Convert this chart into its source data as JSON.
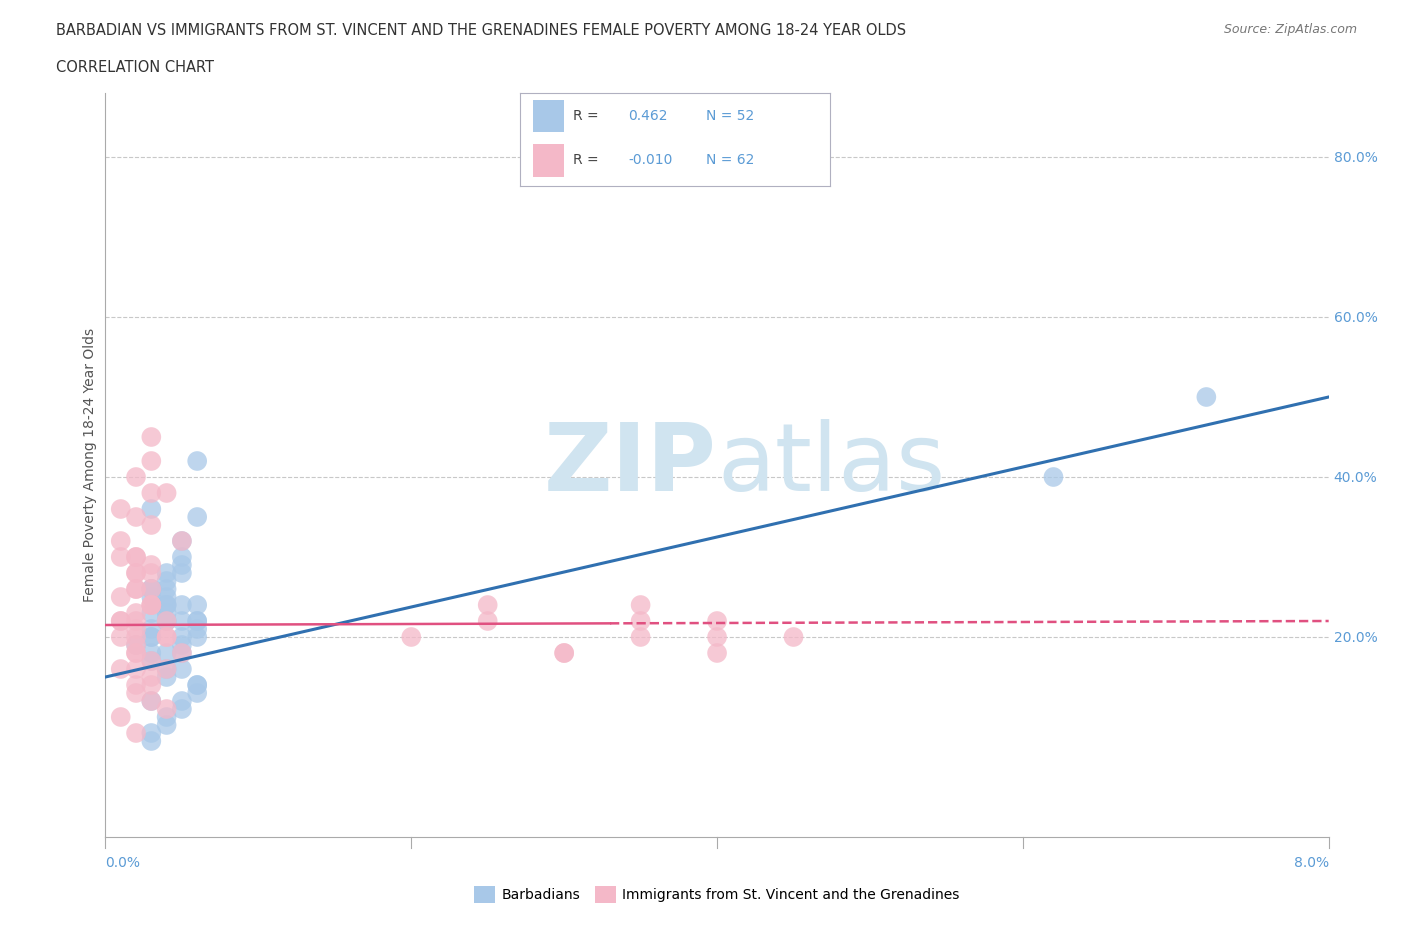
{
  "title_line1": "BARBADIAN VS IMMIGRANTS FROM ST. VINCENT AND THE GRENADINES FEMALE POVERTY AMONG 18-24 YEAR OLDS",
  "title_line2": "CORRELATION CHART",
  "source": "Source: ZipAtlas.com",
  "ylabel": "Female Poverty Among 18-24 Year Olds",
  "xlim": [
    0.0,
    0.08
  ],
  "ylim": [
    -0.05,
    0.88
  ],
  "blue_R": 0.462,
  "blue_N": 52,
  "pink_R": -0.01,
  "pink_N": 62,
  "blue_color": "#a8c8e8",
  "pink_color": "#f4b8c8",
  "blue_line_color": "#3070b0",
  "pink_line_color": "#e05080",
  "watermark_color": "#d0e4f0",
  "legend_label_blue": "Barbadians",
  "legend_label_pink": "Immigrants from St. Vincent and the Grenadines",
  "blue_scatter_x": [
    0.005,
    0.003,
    0.006,
    0.004,
    0.002,
    0.004,
    0.003,
    0.005,
    0.006,
    0.004,
    0.003,
    0.005,
    0.004,
    0.003,
    0.006,
    0.005,
    0.004,
    0.003,
    0.005,
    0.004,
    0.006,
    0.003,
    0.004,
    0.005,
    0.006,
    0.003,
    0.004,
    0.005,
    0.006,
    0.004,
    0.003,
    0.005,
    0.004,
    0.006,
    0.003,
    0.005,
    0.004,
    0.003,
    0.005,
    0.006,
    0.004,
    0.003,
    0.005,
    0.006,
    0.004,
    0.003,
    0.005,
    0.006,
    0.004,
    0.003,
    0.062,
    0.072
  ],
  "blue_scatter_y": [
    0.28,
    0.36,
    0.42,
    0.22,
    0.19,
    0.25,
    0.23,
    0.3,
    0.35,
    0.26,
    0.2,
    0.24,
    0.28,
    0.18,
    0.22,
    0.32,
    0.27,
    0.21,
    0.29,
    0.24,
    0.2,
    0.26,
    0.22,
    0.18,
    0.24,
    0.2,
    0.16,
    0.22,
    0.14,
    0.18,
    0.12,
    0.16,
    0.1,
    0.14,
    0.08,
    0.12,
    0.15,
    0.17,
    0.19,
    0.21,
    0.23,
    0.25,
    0.11,
    0.13,
    0.09,
    0.07,
    0.2,
    0.22,
    0.24,
    0.26,
    0.4,
    0.5
  ],
  "pink_scatter_x": [
    0.001,
    0.002,
    0.003,
    0.004,
    0.002,
    0.003,
    0.001,
    0.002,
    0.003,
    0.002,
    0.001,
    0.002,
    0.003,
    0.002,
    0.001,
    0.002,
    0.003,
    0.002,
    0.001,
    0.002,
    0.003,
    0.002,
    0.001,
    0.002,
    0.003,
    0.002,
    0.001,
    0.002,
    0.003,
    0.002,
    0.001,
    0.002,
    0.003,
    0.004,
    0.002,
    0.003,
    0.001,
    0.002,
    0.003,
    0.002,
    0.004,
    0.005,
    0.003,
    0.004,
    0.005,
    0.003,
    0.004,
    0.002,
    0.003,
    0.004,
    0.025,
    0.02,
    0.03,
    0.025,
    0.035,
    0.04,
    0.03,
    0.035,
    0.04,
    0.035,
    0.04,
    0.045
  ],
  "pink_scatter_y": [
    0.32,
    0.28,
    0.38,
    0.2,
    0.4,
    0.45,
    0.36,
    0.3,
    0.42,
    0.26,
    0.22,
    0.18,
    0.24,
    0.35,
    0.16,
    0.14,
    0.12,
    0.2,
    0.22,
    0.28,
    0.34,
    0.18,
    0.25,
    0.21,
    0.15,
    0.26,
    0.3,
    0.23,
    0.29,
    0.19,
    0.1,
    0.13,
    0.17,
    0.11,
    0.16,
    0.24,
    0.2,
    0.22,
    0.14,
    0.08,
    0.38,
    0.32,
    0.28,
    0.22,
    0.18,
    0.24,
    0.2,
    0.3,
    0.26,
    0.16,
    0.22,
    0.2,
    0.18,
    0.24,
    0.2,
    0.22,
    0.18,
    0.24,
    0.2,
    0.22,
    0.18,
    0.2
  ]
}
